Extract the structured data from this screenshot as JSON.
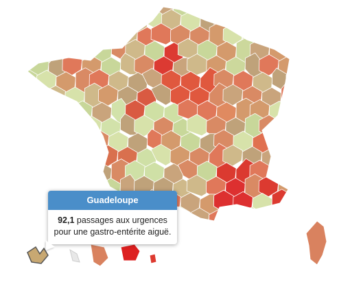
{
  "tooltip": {
    "title": "Guadeloupe",
    "value": "92,1",
    "text": "passages aux urgences pour une gastro-entérite aiguë."
  }
}
